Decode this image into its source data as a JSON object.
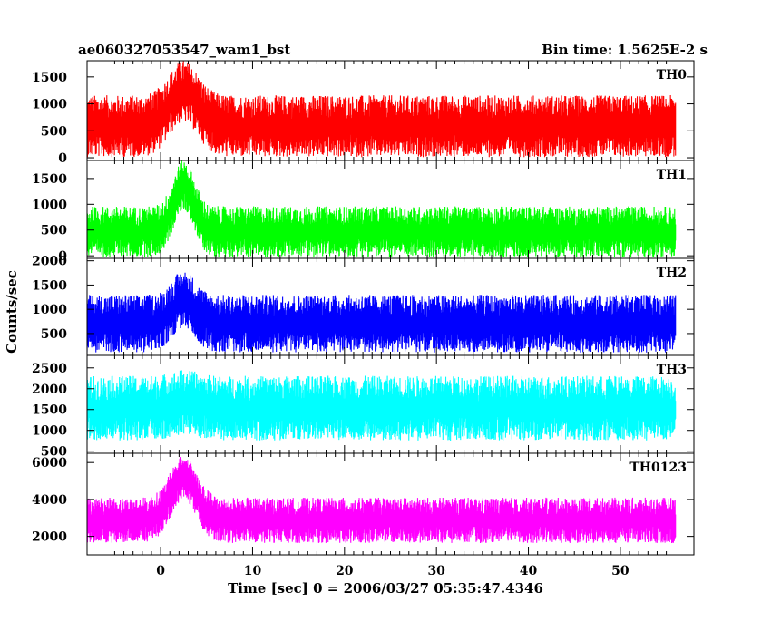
{
  "chart_data": {
    "type": "line",
    "title": "ae060327053547_wam1_bst",
    "subtitle": "Bin time: 1.5625E-2 s",
    "xlabel": "Time [sec] 0 = 2006/03/27 05:35:47.4346",
    "ylabel": "Counts/sec",
    "xlim": [
      -8,
      58
    ],
    "xticks": [
      0,
      10,
      20,
      30,
      40,
      50
    ],
    "data_range": [
      -8,
      56
    ],
    "burst_peak_time": 2.5,
    "grid": false,
    "legend": "none",
    "panels": [
      {
        "name": "TH0",
        "color": "#ff0000",
        "ylim": [
          -50,
          1800
        ],
        "yticks": [
          0,
          500,
          1000,
          1500
        ],
        "baseline": 600,
        "noise": 280,
        "burst_amplitude": 650,
        "burst_width": 2.2
      },
      {
        "name": "TH1",
        "color": "#00ff00",
        "ylim": [
          -50,
          1850
        ],
        "yticks": [
          0,
          500,
          1000,
          1500
        ],
        "baseline": 480,
        "noise": 240,
        "burst_amplitude": 900,
        "burst_width": 1.6
      },
      {
        "name": "TH2",
        "color": "#0000ff",
        "ylim": [
          50,
          2050
        ],
        "yticks": [
          500,
          1000,
          1500,
          2000
        ],
        "baseline": 720,
        "noise": 290,
        "burst_amplitude": 500,
        "burst_width": 1.8
      },
      {
        "name": "TH3",
        "color": "#00ffff",
        "ylim": [
          450,
          2800
        ],
        "yticks": [
          500,
          1000,
          1500,
          2000,
          2500
        ],
        "baseline": 1550,
        "noise": 380,
        "burst_amplitude": 150,
        "burst_width": 2.0
      },
      {
        "name": "TH0123",
        "color": "#ff00ff",
        "ylim": [
          1000,
          6500
        ],
        "yticks": [
          2000,
          4000,
          6000
        ],
        "baseline": 2900,
        "noise": 600,
        "burst_amplitude": 2300,
        "burst_width": 2.0
      }
    ]
  }
}
